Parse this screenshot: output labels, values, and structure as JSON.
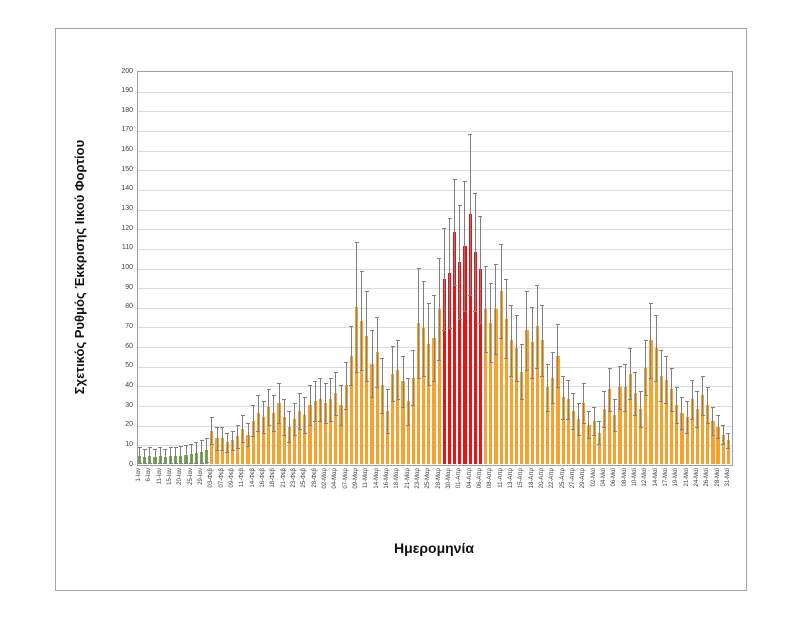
{
  "chart_data": {
    "type": "bar",
    "title": "",
    "xlabel": "Ημερομηνία",
    "ylabel": "Σχετικός Ρυθμός Έκκρισης Ιικού Φορτίου",
    "ylim": [
      0,
      200
    ],
    "ytick_step": 10,
    "grid": true,
    "legend": "none",
    "label_every": 2,
    "x_labels": [
      "1-Ιαν",
      "6-Ιαν",
      "11-Ιαν",
      "15-Ιαν",
      "20-Ιαν",
      "25-Ιαν",
      "29-Ιαν",
      "03-Φεβ",
      "07-Φεβ",
      "09-Φεβ",
      "11-Φεβ",
      "14-Φεβ",
      "16-Φεβ",
      "18-Φεβ",
      "21-Φεβ",
      "23-Φεβ",
      "25-Φεβ",
      "28-Φεβ",
      "02-Μαρ",
      "04-Μαρ",
      "07-Μαρ",
      "09-Μαρ",
      "11-Μαρ",
      "14-Μαρ",
      "16-Μαρ",
      "18-Μαρ",
      "21-Μαρ",
      "23-Μαρ",
      "25-Μαρ",
      "28-Μαρ",
      "30-Μαρ",
      "01-Απρ",
      "04-Απρ",
      "06-Απρ",
      "08-Απρ",
      "11-Απρ",
      "13-Απρ",
      "15-Απρ",
      "18-Απρ",
      "20-Απρ",
      "22-Απρ",
      "25-Απρ",
      "27-Απρ",
      "29-Απρ",
      "02-Μαϊ",
      "04-Μαϊ",
      "06-Μαϊ",
      "08-Μαϊ",
      "10-Μαϊ",
      "12-Μαϊ",
      "14-Μαϊ",
      "17-Μαϊ",
      "19-Μαϊ",
      "21-Μαϊ",
      "24-Μαϊ",
      "26-Μαϊ",
      "28-Μαϊ",
      "31-Μαϊ"
    ],
    "values": [
      4,
      3.5,
      4,
      3.5,
      4,
      3.5,
      4,
      4,
      4,
      4.5,
      5,
      5.5,
      6,
      7,
      17,
      13,
      13,
      11,
      12,
      14,
      18,
      15,
      22,
      26,
      24,
      29,
      26,
      31,
      24,
      19,
      23,
      27,
      25,
      30,
      32,
      33,
      31,
      33,
      36,
      30,
      40,
      55,
      80,
      73,
      65,
      51,
      57,
      40,
      27,
      46,
      48,
      42,
      32,
      44,
      72,
      69,
      61,
      64,
      79,
      94,
      97,
      118,
      103,
      111,
      127,
      108,
      99,
      79,
      72,
      79,
      88,
      74,
      63,
      59,
      47,
      68,
      62,
      70,
      63,
      39,
      44,
      55,
      34,
      33,
      27,
      23,
      31,
      20,
      22,
      16,
      28,
      38,
      25,
      39,
      39,
      46,
      36,
      28,
      49,
      63,
      59,
      45,
      43,
      38,
      30,
      26,
      24,
      33,
      28,
      35,
      30,
      22,
      19,
      15,
      12
    ],
    "errors": [
      4.5,
      4,
      4.5,
      4,
      4.5,
      4,
      4.5,
      4.5,
      5,
      5,
      5,
      5.5,
      6,
      6,
      7,
      6,
      6,
      5,
      5,
      6,
      7,
      6,
      8,
      9,
      8,
      9,
      9,
      10,
      9,
      8,
      8,
      9,
      9,
      10,
      10,
      11,
      10,
      11,
      11,
      10,
      12,
      15,
      33,
      25,
      23,
      17,
      18,
      14,
      11,
      14,
      15,
      13,
      12,
      14,
      28,
      24,
      21,
      22,
      26,
      26,
      28,
      27,
      29,
      33,
      41,
      30,
      27,
      22,
      20,
      23,
      24,
      20,
      18,
      17,
      14,
      20,
      18,
      21,
      18,
      12,
      13,
      16,
      11,
      10,
      9,
      8,
      10,
      7,
      7,
      6,
      9,
      11,
      8,
      11,
      12,
      13,
      11,
      9,
      14,
      19,
      17,
      13,
      12,
      11,
      9,
      8,
      8,
      10,
      9,
      10,
      9,
      7,
      6,
      5,
      4
    ],
    "color_ranges": [
      {
        "from": 0,
        "to": 13,
        "color": "green"
      },
      {
        "from": 14,
        "to": 58,
        "color": "orange"
      },
      {
        "from": 59,
        "to": 66,
        "color": "red"
      },
      {
        "from": 67,
        "to": 114,
        "color": "orange"
      }
    ],
    "colors": {
      "green": "#70ad47",
      "orange": "#f6a22d",
      "red": "#ee1111",
      "error_bar": "#808080",
      "gridline": "#dcdcdc",
      "plot_border": "#a0a0a0"
    }
  }
}
